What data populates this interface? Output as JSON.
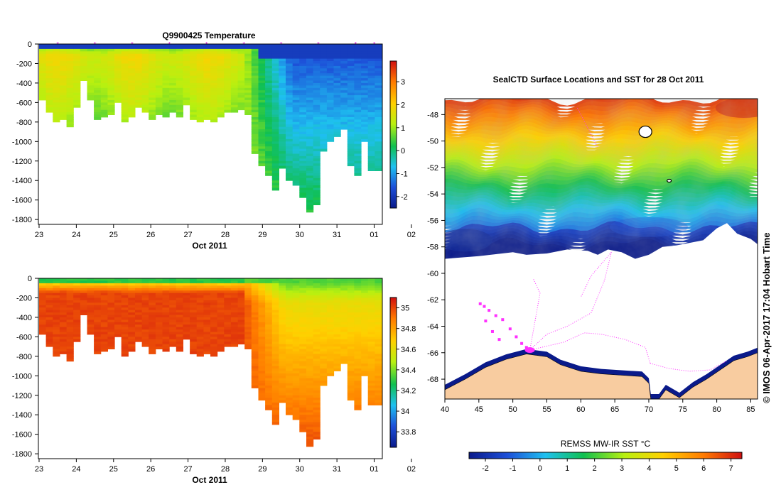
{
  "chart_data": [
    {
      "id": "temperature",
      "type": "heatmap",
      "title": "Q9900425  Temperature",
      "xlabel": "Oct 2011",
      "ylabel": "",
      "x_ticks": [
        "23",
        "24",
        "25",
        "26",
        "27",
        "28",
        "29",
        "30",
        "31",
        "01",
        "02"
      ],
      "x_range_days": [
        0,
        9.2
      ],
      "y_ticks": [
        0,
        -200,
        -400,
        -600,
        -800,
        -1000,
        -1200,
        -1400,
        -1600,
        -1800
      ],
      "ylim": [
        -1850,
        0
      ],
      "profile_times": [
        0.0,
        0.5,
        1.0,
        1.5,
        2.0,
        2.5,
        3.0,
        3.5,
        4.0,
        4.5,
        5.0,
        5.5,
        6.0,
        6.5,
        7.0,
        7.5,
        8.0,
        8.5,
        9.0,
        9.2
      ],
      "surface_markers": [
        0.5,
        1.5,
        2.5,
        3.5,
        4.5,
        5.5,
        6.5,
        7.5,
        8.5,
        9.0
      ],
      "colorbar": {
        "min": -2.5,
        "max": 3.9,
        "ticks": [
          3,
          2,
          1,
          0,
          -1,
          -2
        ],
        "colors": [
          "#0a1a8a",
          "#1d4fd8",
          "#1ec0f0",
          "#10c050",
          "#b8f010",
          "#ffd000",
          "#ff7a00",
          "#d01010"
        ]
      }
    },
    {
      "id": "salinity",
      "type": "heatmap",
      "title": "",
      "xlabel": "Oct 2011",
      "ylabel": "",
      "x_ticks": [
        "23",
        "24",
        "25",
        "26",
        "27",
        "28",
        "29",
        "30",
        "31",
        "01",
        "02"
      ],
      "y_ticks": [
        0,
        -200,
        -400,
        -600,
        -800,
        -1000,
        -1200,
        -1400,
        -1600,
        -1800
      ],
      "ylim": [
        -1850,
        0
      ],
      "colorbar": {
        "min": 33.65,
        "max": 35.1,
        "ticks": [
          "35",
          "34.8",
          "34.6",
          "34.4",
          "34.2",
          "34",
          "33.8"
        ],
        "colors": [
          "#0a1a8a",
          "#1d4fd8",
          "#1ec0f0",
          "#10c050",
          "#b8f010",
          "#ffd000",
          "#ff7a00",
          "#d01010"
        ]
      }
    },
    {
      "id": "sst_map",
      "type": "heatmap",
      "title": "SealCTD Surface Locations and SST for 28 Oct 2011",
      "x_ticks": [
        "40",
        "45",
        "50",
        "55",
        "60",
        "65",
        "70",
        "75",
        "80",
        "85"
      ],
      "y_ticks": [
        "-48",
        "-50",
        "-52",
        "-54",
        "-56",
        "-58",
        "-60",
        "-62",
        "-64",
        "-66",
        "-68"
      ],
      "lon_range": [
        40,
        86
      ],
      "lat_range": [
        -69.5,
        -46.8
      ],
      "colorbar": {
        "label": "REMSS MW-IR SST °C",
        "min": -2.6,
        "max": 7.4,
        "ticks": [
          "-2",
          "-1",
          "0",
          "1",
          "2",
          "3",
          "4",
          "5",
          "6",
          "7"
        ],
        "colors": [
          "#0a1a8a",
          "#1d4fd8",
          "#1ec0f0",
          "#10c050",
          "#b8f010",
          "#ffd000",
          "#ff7a00",
          "#d01010"
        ]
      },
      "land_color": "#f8cca0",
      "track_color": "#ff30ff",
      "track_points": [
        [
          45.2,
          -62.3
        ],
        [
          45.8,
          -62.5
        ],
        [
          46.5,
          -62.8
        ],
        [
          47.5,
          -63.2
        ],
        [
          48.5,
          -63.5
        ],
        [
          49.6,
          -64.2
        ],
        [
          50.5,
          -64.8
        ],
        [
          51.3,
          -65.3
        ],
        [
          52.0,
          -65.6
        ],
        [
          52.6,
          -65.8
        ],
        [
          48.0,
          -65.0
        ],
        [
          47.0,
          -64.4
        ],
        [
          46.0,
          -63.6
        ]
      ],
      "track_lines": [
        [
          [
            52.5,
            -65.8
          ],
          [
            55.0,
            -64.6
          ],
          [
            58.0,
            -64.0
          ],
          [
            61.5,
            -63.0
          ],
          [
            63.5,
            -60.5
          ],
          [
            64.5,
            -58.4
          ]
        ],
        [
          [
            52.5,
            -65.8
          ],
          [
            54.0,
            -61.5
          ],
          [
            53.0,
            -60.4
          ]
        ],
        [
          [
            52.5,
            -65.8
          ],
          [
            57.5,
            -65.2
          ],
          [
            60.5,
            -64.5
          ],
          [
            63.0,
            -64.6
          ],
          [
            66.5,
            -65.0
          ],
          [
            69.5,
            -65.6
          ],
          [
            70.2,
            -66.8
          ]
        ],
        [
          [
            70.2,
            -66.8
          ],
          [
            73.0,
            -67.2
          ],
          [
            76.0,
            -67.4
          ],
          [
            79.0,
            -67.3
          ],
          [
            81.5,
            -66.6
          ]
        ],
        [
          [
            64.5,
            -58.4
          ],
          [
            61.5,
            -60.2
          ],
          [
            60.0,
            -61.8
          ]
        ],
        [
          [
            59.5,
            -47.5
          ],
          [
            61.0,
            -49.0
          ],
          [
            62.5,
            -50.5
          ]
        ]
      ],
      "islands": [
        [
          69.5,
          -49.3
        ],
        [
          73.0,
          -53.0
        ]
      ]
    }
  ],
  "credit": "©  IMOS 06-Apr-2017 17:04 Hobart Time"
}
